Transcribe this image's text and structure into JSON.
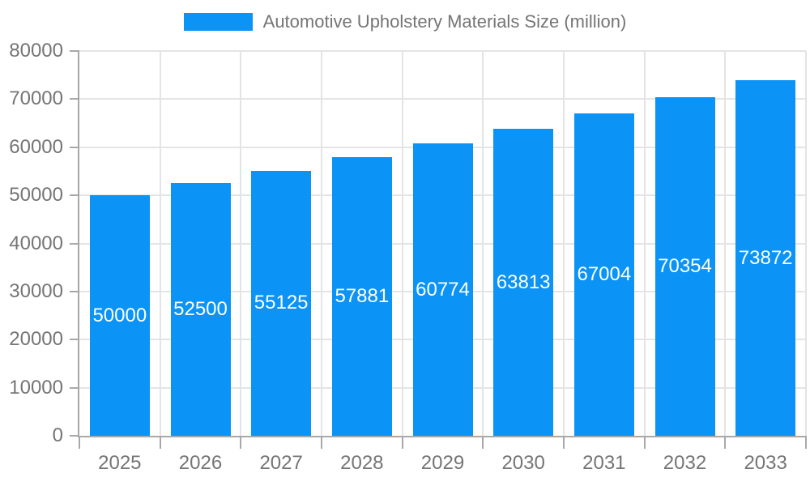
{
  "legend": {
    "label": "Automotive Upholstery Materials Size (million)"
  },
  "colors": {
    "bar": "#0b93f5",
    "grid": "#e4e4e4",
    "axis": "#a8a8a8",
    "tick_label": "#757575",
    "value_label": "#ffffff",
    "background": "#ffffff"
  },
  "chart_data": {
    "type": "bar",
    "title": "Automotive Upholstery Materials Size (million)",
    "categories": [
      "2025",
      "2026",
      "2027",
      "2028",
      "2029",
      "2030",
      "2031",
      "2032",
      "2033"
    ],
    "values": [
      50000,
      52500,
      55125,
      57881,
      60774,
      63813,
      67004,
      70354,
      73872
    ],
    "value_labels": [
      "50000",
      "52500",
      "55125",
      "57881",
      "60774",
      "63813",
      "67004",
      "70354",
      "73872"
    ],
    "xlabel": "",
    "ylabel": "",
    "ylim": [
      0,
      80000
    ],
    "yticks": [
      0,
      10000,
      20000,
      30000,
      40000,
      50000,
      60000,
      70000,
      80000
    ],
    "ytick_labels": [
      "0",
      "10000",
      "20000",
      "30000",
      "40000",
      "50000",
      "60000",
      "70000",
      "80000"
    ],
    "grid": "both",
    "legend_position": "top",
    "value_label_position": "inside-center",
    "series": [
      {
        "name": "Automotive Upholstery Materials Size (million)",
        "color": "#0b93f5",
        "values": [
          50000,
          52500,
          55125,
          57881,
          60774,
          63813,
          67004,
          70354,
          73872
        ]
      }
    ]
  }
}
